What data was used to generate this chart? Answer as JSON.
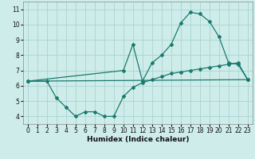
{
  "background_color": "#ceecea",
  "grid_color": "#aad4d0",
  "line_color": "#1a7a6e",
  "x_label": "Humidex (Indice chaleur)",
  "xlim": [
    -0.5,
    23.5
  ],
  "ylim": [
    3.5,
    11.5
  ],
  "yticks": [
    4,
    5,
    6,
    7,
    8,
    9,
    10,
    11
  ],
  "xticks": [
    0,
    1,
    2,
    3,
    4,
    5,
    6,
    7,
    8,
    9,
    10,
    11,
    12,
    13,
    14,
    15,
    16,
    17,
    18,
    19,
    20,
    21,
    22,
    23
  ],
  "line1_x": [
    0,
    2,
    3,
    4,
    5,
    6,
    7,
    8,
    9,
    10,
    11,
    12,
    13,
    14,
    15,
    16,
    17,
    18,
    19,
    20,
    21,
    22,
    23
  ],
  "line1_y": [
    6.3,
    6.3,
    5.2,
    4.6,
    4.0,
    4.3,
    4.3,
    4.0,
    4.0,
    5.3,
    5.9,
    6.2,
    6.4,
    6.6,
    6.8,
    6.9,
    7.0,
    7.1,
    7.2,
    7.3,
    7.4,
    7.5,
    6.4
  ],
  "line2_x": [
    0,
    23
  ],
  "line2_y": [
    6.3,
    6.4
  ],
  "line3_x": [
    0,
    10,
    11,
    12,
    13,
    14,
    15,
    16,
    17,
    18,
    19,
    20,
    21,
    22,
    23
  ],
  "line3_y": [
    6.3,
    7.0,
    8.7,
    6.3,
    7.5,
    8.0,
    8.7,
    10.1,
    10.8,
    10.7,
    10.2,
    9.2,
    7.5,
    7.4,
    6.4
  ],
  "marker": "D",
  "markersize": 2.0,
  "linewidth": 0.9
}
